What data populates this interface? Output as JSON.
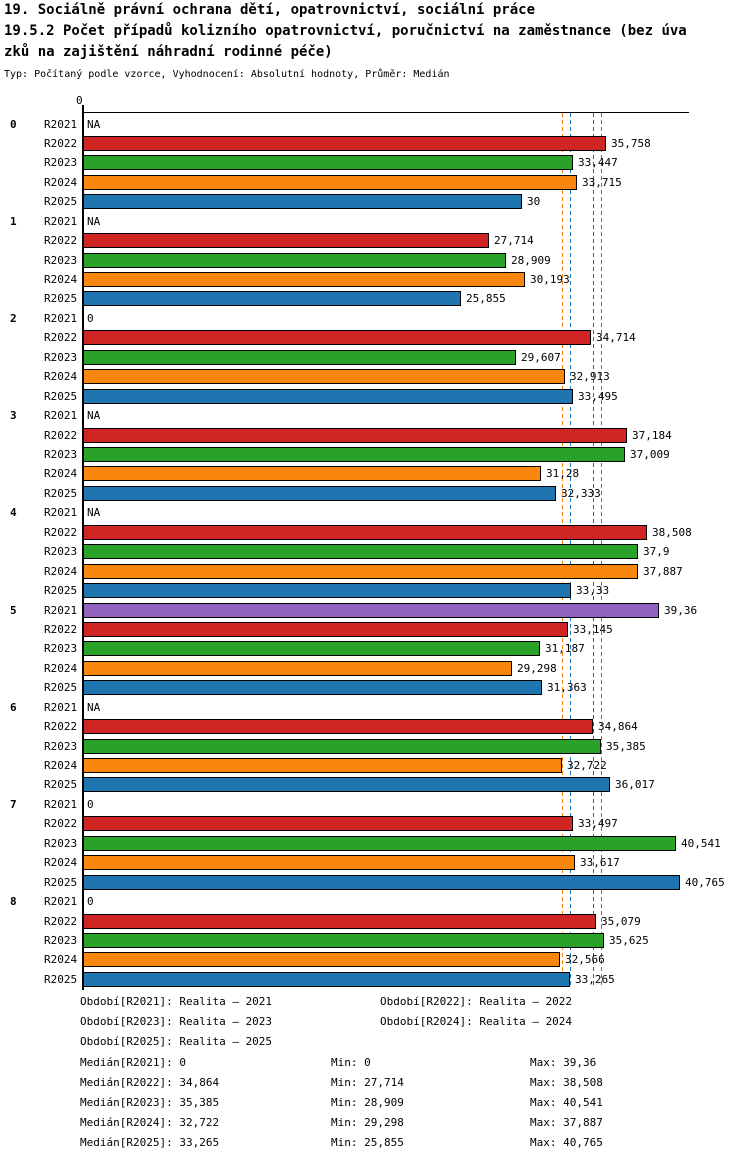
{
  "title": {
    "line1": "19. Sociálně právní ochrana dětí, opatrovnictví, sociální práce",
    "line2": "19.5.2 Počet případů kolizního opatrovnictví, poručnictví na zaměstnance (bez úva",
    "line3": "zků na zajištění náhradní rodinné péče)",
    "meta": "Typ: Počítaný podle vzorce, Vyhodnocení: Absolutní hodnoty, Průměr: Medián"
  },
  "chart_data": {
    "type": "bar",
    "orientation": "horizontal",
    "value_axis": {
      "zero_label": "0",
      "xlim": [
        0,
        41.4
      ],
      "grid": false
    },
    "series": [
      {
        "name": "R2021",
        "color": "#9263BE"
      },
      {
        "name": "R2022",
        "color": "#D02525"
      },
      {
        "name": "R2023",
        "color": "#28A228"
      },
      {
        "name": "R2024",
        "color": "#FB860E"
      },
      {
        "name": "R2025",
        "color": "#1F75B0"
      }
    ],
    "groups": [
      {
        "label": "0",
        "values": [
          null,
          35.758,
          33.447,
          33.715,
          30
        ],
        "displays": [
          "NA",
          "35,758",
          "33,447",
          "33,715",
          "30"
        ]
      },
      {
        "label": "1",
        "values": [
          null,
          27.714,
          28.909,
          30.193,
          25.855
        ],
        "displays": [
          "NA",
          "27,714",
          "28,909",
          "30,193",
          "25,855"
        ]
      },
      {
        "label": "2",
        "values": [
          0,
          34.714,
          29.607,
          32.913,
          33.495
        ],
        "displays": [
          "0",
          "34,714",
          "29,607",
          "32,913",
          "33,495"
        ]
      },
      {
        "label": "3",
        "values": [
          null,
          37.184,
          37.009,
          31.28,
          32.333
        ],
        "displays": [
          "NA",
          "37,184",
          "37,009",
          "31,28",
          "32,333"
        ]
      },
      {
        "label": "4",
        "values": [
          null,
          38.508,
          37.9,
          37.887,
          33.33
        ],
        "displays": [
          "NA",
          "38,508",
          "37,9",
          "37,887",
          "33,33"
        ]
      },
      {
        "label": "5",
        "values": [
          39.36,
          33.145,
          31.187,
          29.298,
          31.363
        ],
        "displays": [
          "39,36",
          "33,145",
          "31,187",
          "29,298",
          "31,363"
        ]
      },
      {
        "label": "6",
        "values": [
          null,
          34.864,
          35.385,
          32.722,
          36.017
        ],
        "displays": [
          "NA",
          "34,864",
          "35,385",
          "32,722",
          "36,017"
        ]
      },
      {
        "label": "7",
        "values": [
          0,
          33.497,
          40.541,
          33.617,
          40.765
        ],
        "displays": [
          "0",
          "33,497",
          "40,541",
          "33,617",
          "40,765"
        ]
      },
      {
        "label": "8",
        "values": [
          0,
          35.079,
          35.625,
          32.566,
          33.265
        ],
        "displays": [
          "0",
          "35,079",
          "35,625",
          "32,566",
          "33,265"
        ]
      }
    ],
    "median_lines": [
      {
        "series": "R2021",
        "value": 0
      },
      {
        "series": "R2022",
        "value": 34.864
      },
      {
        "series": "R2023",
        "value": 35.385
      },
      {
        "series": "R2024",
        "value": 32.722
      },
      {
        "series": "R2025",
        "value": 33.265
      }
    ]
  },
  "footer": {
    "legend": [
      "Období[R2021]: Realita – 2021",
      "Období[R2022]: Realita – 2022",
      "Období[R2023]: Realita – 2023",
      "Období[R2024]: Realita – 2024",
      "Období[R2025]: Realita – 2025"
    ],
    "stats": [
      {
        "median": "Medián[R2021]: 0",
        "min": "Min: 0",
        "max": "Max: 39,36"
      },
      {
        "median": "Medián[R2022]: 34,864",
        "min": "Min: 27,714",
        "max": "Max: 38,508"
      },
      {
        "median": "Medián[R2023]: 35,385",
        "min": "Min: 28,909",
        "max": "Max: 40,541"
      },
      {
        "median": "Medián[R2024]: 32,722",
        "min": "Min: 29,298",
        "max": "Max: 37,887"
      },
      {
        "median": "Medián[R2025]: 33,265",
        "min": "Min: 25,855",
        "max": "Max: 40,765"
      }
    ]
  }
}
